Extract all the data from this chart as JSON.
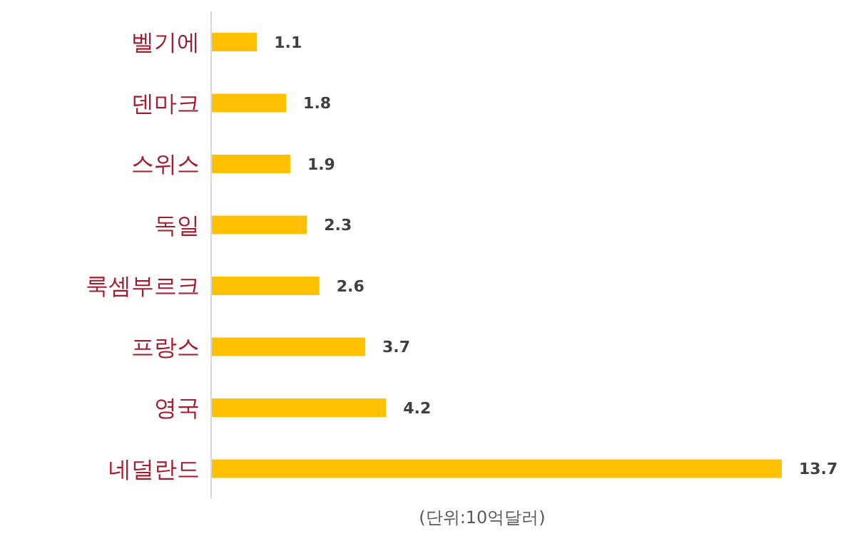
{
  "chart_data": {
    "type": "bar",
    "orientation": "horizontal",
    "categories": [
      "벨기에",
      "덴마크",
      "스위스",
      "독일",
      "룩셈부르크",
      "프랑스",
      "영국",
      "네덜란드"
    ],
    "values": [
      1.1,
      1.8,
      1.9,
      2.3,
      2.6,
      3.7,
      4.2,
      13.7
    ],
    "color": "#ffc000",
    "data_labels": true,
    "tick_labels": "y",
    "grid": false,
    "annotations": [
      "(단위:10억달러)"
    ]
  }
}
